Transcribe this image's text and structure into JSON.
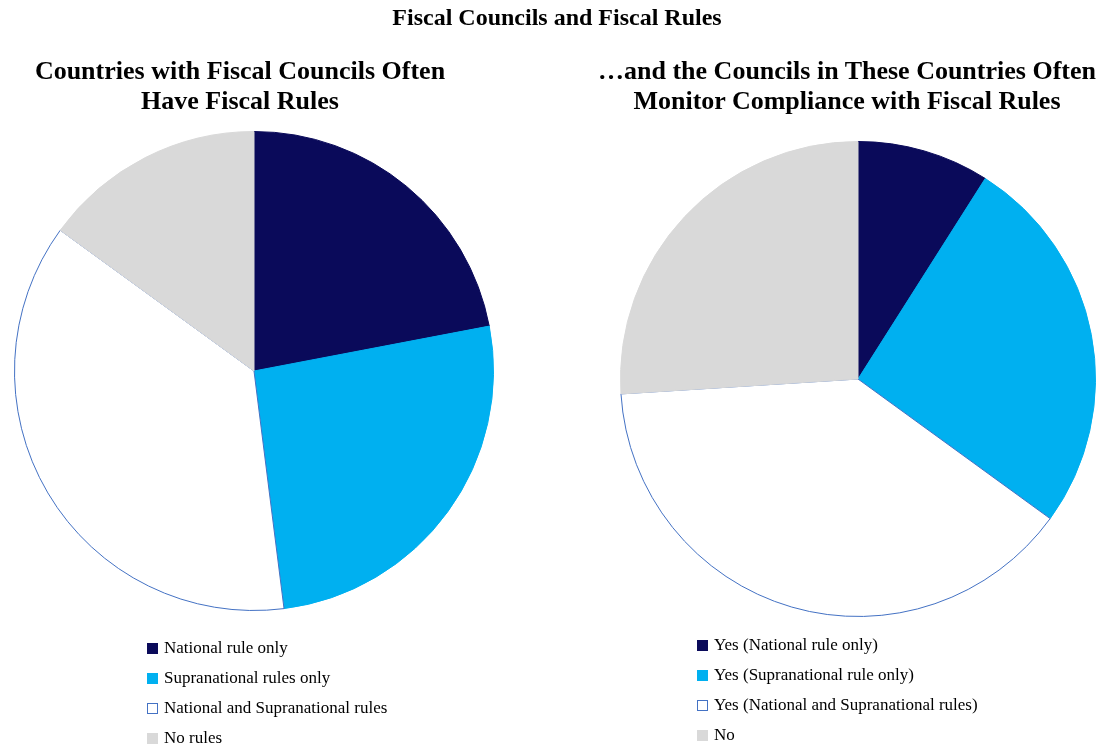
{
  "chart_data": [
    {
      "type": "pie",
      "title": "Fiscal Councils and Fiscal Rules",
      "subtitle": "Countries with Fiscal Councils Often Have Fiscal Rules",
      "categories": [
        "National rule only",
        "Supranational rules only",
        "National and Supranational rules",
        "No rules"
      ],
      "values": [
        22,
        26,
        37,
        15
      ],
      "colors": [
        "#0a0a5a",
        "#00b0f0",
        "#ffffff",
        "#d9d9d9"
      ],
      "legend": "bottom"
    },
    {
      "type": "pie",
      "subtitle": "…and the Councils in These Countries Often Monitor Compliance with Fiscal Rules",
      "categories": [
        "Yes (National rule only)",
        "Yes (Supranational rule only)",
        "Yes (National and Supranational rules)",
        "No"
      ],
      "values": [
        9,
        26,
        39,
        26
      ],
      "colors": [
        "#0a0a5a",
        "#00b0f0",
        "#ffffff",
        "#d9d9d9"
      ],
      "legend": "bottom"
    }
  ]
}
